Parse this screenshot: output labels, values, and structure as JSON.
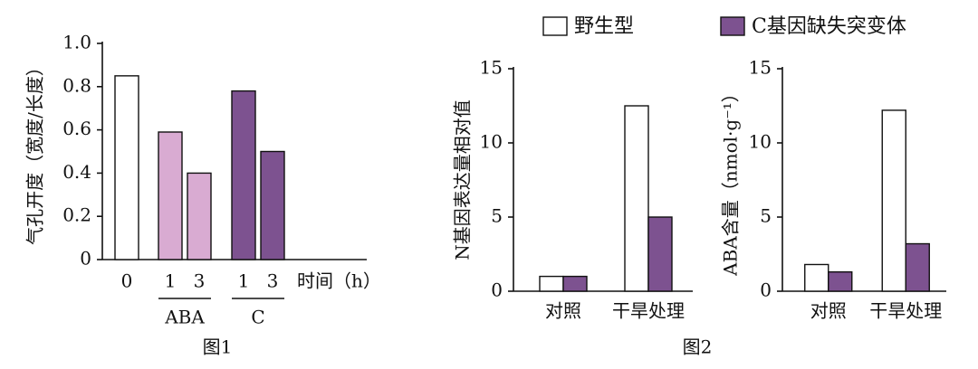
{
  "chart_data": [
    {
      "type": "bar",
      "y_label": "气孔开度（宽度/长度）",
      "x_label": "时间（h）",
      "caption": "图1",
      "categories": [
        "0",
        "1",
        "3",
        "1",
        "3"
      ],
      "groups": [
        null,
        "ABA",
        "ABA",
        "C",
        "C"
      ],
      "values": [
        0.85,
        0.59,
        0.4,
        0.78,
        0.5
      ],
      "colors": [
        "#ffffff",
        "#d9abd2",
        "#d9abd2",
        "#7d5290",
        "#7d5290"
      ],
      "ylim": [
        0,
        1
      ],
      "yticks": [
        0,
        0.2,
        0.4,
        0.6,
        0.8,
        {
          "value": 1,
          "label": "1.0"
        }
      ]
    },
    {
      "type": "grouped-bar",
      "y_label": "N基因表达量相对值",
      "caption": "图2",
      "categories": [
        "对照",
        "干旱处理"
      ],
      "series": [
        {
          "name": "野生型",
          "color": "#ffffff",
          "values": [
            1,
            12.5
          ]
        },
        {
          "name": "C基因缺失突变体",
          "color": "#7d5290",
          "values": [
            1,
            5
          ]
        }
      ],
      "ylim": [
        0,
        15
      ],
      "yticks": [
        0,
        5,
        10,
        15
      ]
    },
    {
      "type": "grouped-bar",
      "y_label": "ABA含量（nmol·g⁻¹）",
      "categories": [
        "对照",
        "干旱处理"
      ],
      "series": [
        {
          "color": "#ffffff",
          "values": [
            1.8,
            12.2
          ]
        },
        {
          "color": "#7d5290",
          "values": [
            1.3,
            3.2
          ]
        }
      ],
      "ylim": [
        0,
        15
      ],
      "yticks": [
        0,
        5,
        10,
        15
      ]
    }
  ]
}
